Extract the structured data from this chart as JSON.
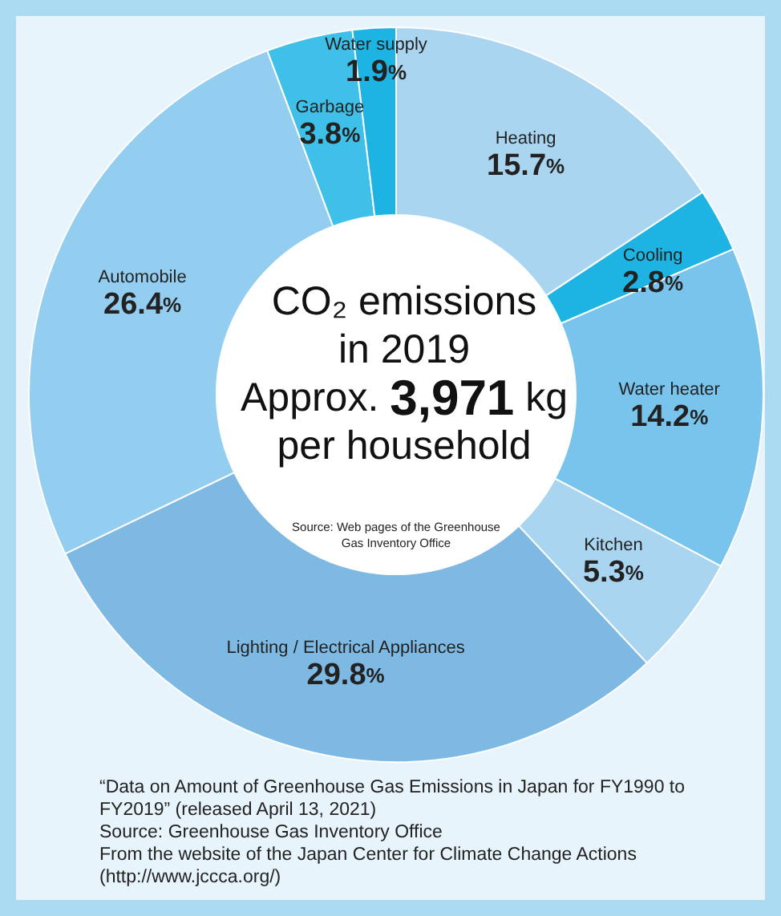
{
  "chart_data": {
    "type": "donut",
    "title": "CO₂ emissions\nin 2019\nApprox. 3,971 kg\nper household",
    "categories": [
      "Heating",
      "Cooling",
      "Water heater",
      "Kitchen",
      "Lighting / Electrical Appliances",
      "Automobile",
      "Garbage",
      "Water supply"
    ],
    "values": [
      15.7,
      2.8,
      14.2,
      5.3,
      29.8,
      26.4,
      3.8,
      1.9
    ],
    "value_labels": [
      "15.7%",
      "2.8%",
      "14.2%",
      "5.3%",
      "29.8%",
      "26.4%",
      "3.8%",
      "1.9%"
    ],
    "colors": [
      "#a9d5f0",
      "#1db4e3",
      "#79c4ec",
      "#a9d5f0",
      "#7db9e2",
      "#93cdef",
      "#3ec0e8",
      "#1db4e3"
    ],
    "legend": false,
    "annotations": [
      "Source: Web pages of the Greenhouse\nGas Inventory Office",
      "“Data on Amount of Greenhouse Gas Emissions in Japan for FY1990 to\nFY2019” (released April 13, 2021)",
      "Source: Greenhouse Gas Inventory Office",
      "From the website of the Japan Center for Climate Change Actions",
      " (http://www.jccca.org/)"
    ]
  }
}
